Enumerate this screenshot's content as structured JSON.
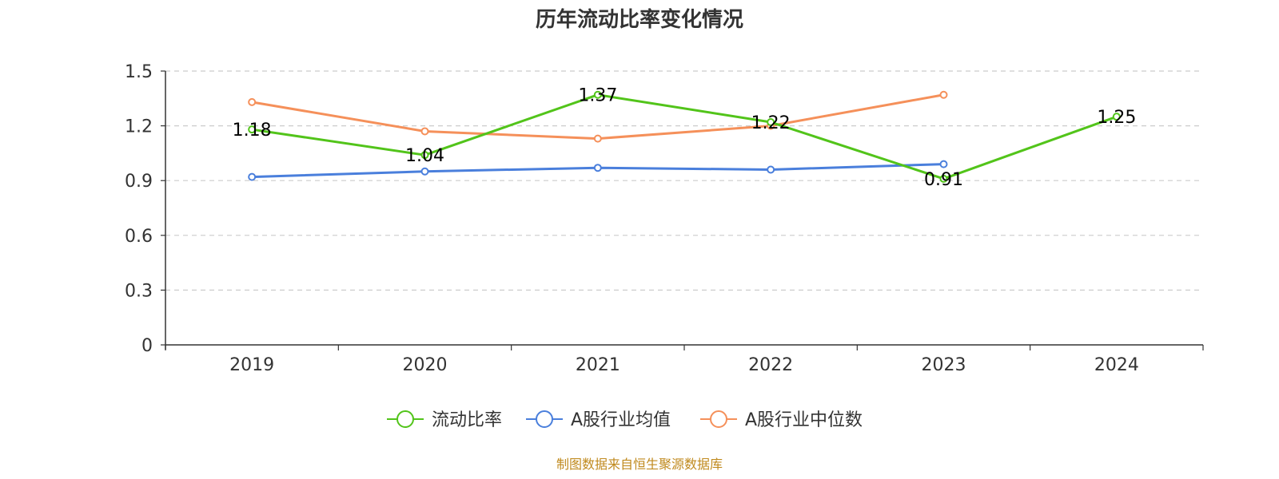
{
  "chart_data": {
    "type": "line",
    "title": "历年流动比率变化情况",
    "categories": [
      "2019",
      "2020",
      "2021",
      "2022",
      "2023",
      "2024"
    ],
    "ylim": [
      0,
      1.5
    ],
    "yticks": [
      "0",
      "0.3",
      "0.6",
      "0.9",
      "1.2",
      "1.5"
    ],
    "grid": true,
    "legend_position": "bottom",
    "series": [
      {
        "name": "流动比率",
        "color": "#52c41a",
        "values": [
          1.18,
          1.04,
          1.37,
          1.22,
          0.91,
          1.25
        ],
        "labels": [
          "1.18",
          "1.04",
          "1.37",
          "1.22",
          "0.91",
          "1.25"
        ]
      },
      {
        "name": "A股行业均值",
        "color": "#4a7fdc",
        "values": [
          0.92,
          0.95,
          0.97,
          0.96,
          0.99,
          null
        ]
      },
      {
        "name": "A股行业中位数",
        "color": "#f5905a",
        "values": [
          1.33,
          1.17,
          1.13,
          1.2,
          1.37,
          null
        ]
      }
    ]
  },
  "source_text": "制图数据来自恒生聚源数据库"
}
